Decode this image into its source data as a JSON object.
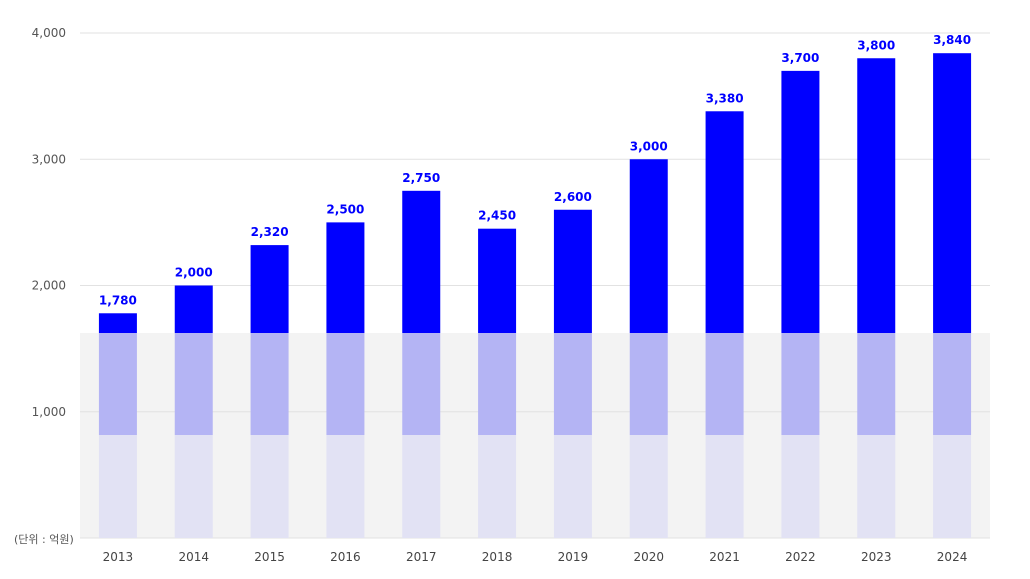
{
  "chart_data": {
    "type": "bar",
    "categories": [
      "2013",
      "2014",
      "2015",
      "2016",
      "2017",
      "2018",
      "2019",
      "2020",
      "2021",
      "2022",
      "2023",
      "2024"
    ],
    "values": [
      1780,
      2000,
      2320,
      2500,
      2750,
      2450,
      2600,
      3000,
      3380,
      3700,
      3800,
      3840
    ],
    "value_labels": [
      "1,780",
      "2,000",
      "2,320",
      "2,500",
      "2,750",
      "2,450",
      "2,600",
      "3,000",
      "3,380",
      "3,700",
      "3,800",
      "3,840"
    ],
    "ylim": [
      0,
      4000
    ],
    "yticks": [
      1000,
      2000,
      3000,
      4000
    ],
    "ytick_labels": [
      "1,000",
      "2,000",
      "3,000",
      "4,000"
    ],
    "unit_label": "(단위 : 억원)",
    "grid": true,
    "colors": {
      "bar": "#0000ff",
      "bar_mid": "#b4b4f4",
      "bar_low": "#e2e2f4",
      "label": "#0000ff",
      "band": "#f3f3f3",
      "grid": "#e2e2e2"
    }
  }
}
